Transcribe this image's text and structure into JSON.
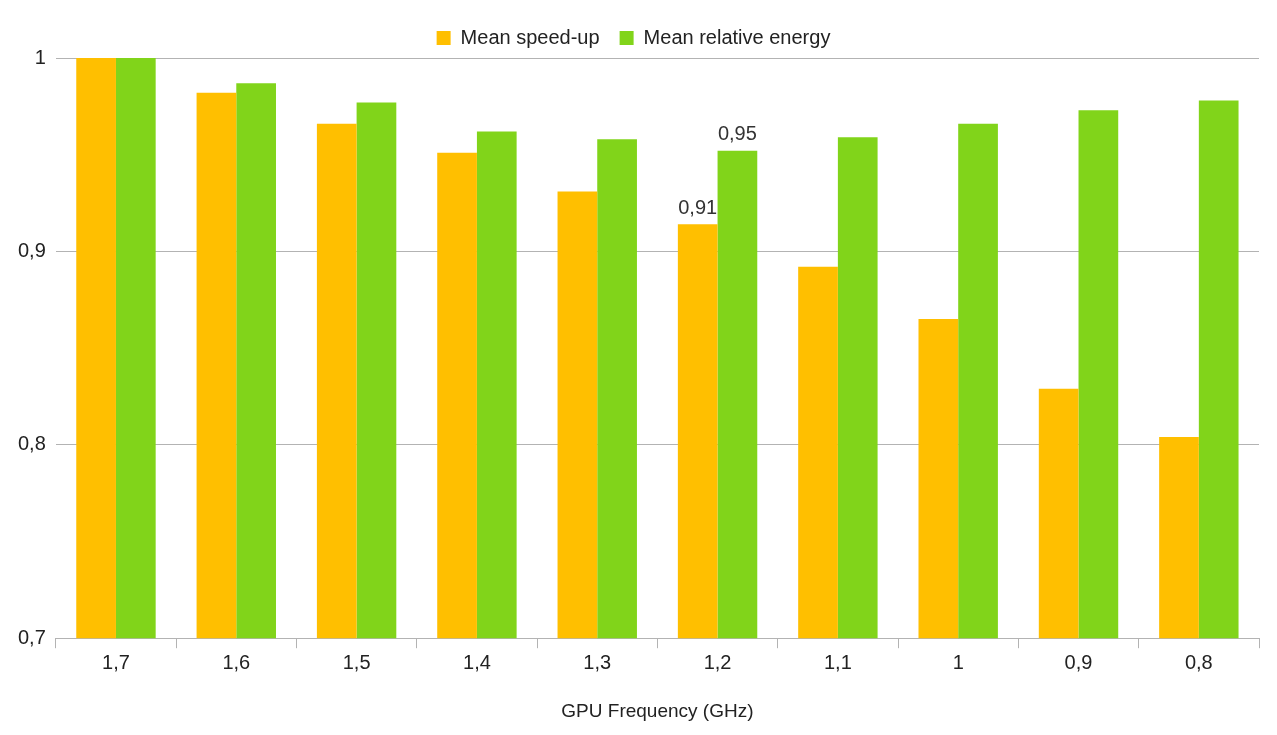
{
  "chart_data": {
    "type": "bar",
    "xlabel": "GPU Frequency (GHz)",
    "categories": [
      "1,7",
      "1,6",
      "1,5",
      "1,4",
      "1,3",
      "1,2",
      "1,1",
      "1",
      "0,9",
      "0,8"
    ],
    "series": [
      {
        "name": "Mean speed-up",
        "color": "#ffbf00",
        "values": [
          1.0,
          0.982,
          0.966,
          0.951,
          0.931,
          0.914,
          0.892,
          0.865,
          0.829,
          0.804
        ],
        "value_labels": [
          null,
          null,
          null,
          null,
          null,
          "0,91",
          null,
          null,
          null,
          null
        ]
      },
      {
        "name": "Mean relative energy",
        "color": "#81d41a",
        "values": [
          1.0,
          0.987,
          0.977,
          0.962,
          0.958,
          0.952,
          0.959,
          0.966,
          0.973,
          0.978
        ],
        "value_labels": [
          null,
          null,
          null,
          null,
          null,
          "0,95",
          null,
          null,
          null,
          null
        ]
      }
    ],
    "ylim": [
      0.7,
      1.0
    ],
    "yticks": [
      {
        "value": 0.7,
        "label": "0,7"
      },
      {
        "value": 0.8,
        "label": "0,8"
      },
      {
        "value": 0.9,
        "label": "0,9"
      },
      1
    ],
    "grid": "y",
    "legend": "top"
  }
}
